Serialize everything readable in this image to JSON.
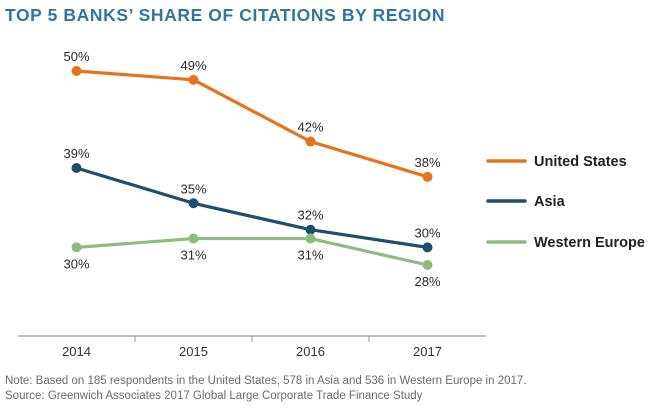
{
  "chart_data": {
    "type": "line",
    "title": "TOP 5 BANKS’ SHARE OF CITATIONS BY REGION",
    "xlabel": "",
    "ylabel": "",
    "categories": [
      "2014",
      "2015",
      "2016",
      "2017"
    ],
    "y_unit": "%",
    "ylim": [
      28,
      50
    ],
    "grid": false,
    "legend_position": "right",
    "series": [
      {
        "name": "United States",
        "color": "#e8731f",
        "values": [
          50,
          49,
          42,
          38
        ],
        "labels": [
          "50%",
          "49%",
          "42%",
          "38%"
        ],
        "label_pos": [
          "above",
          "above",
          "above",
          "above"
        ]
      },
      {
        "name": "Asia",
        "color": "#1f4e6e",
        "values": [
          39,
          35,
          32,
          30
        ],
        "labels": [
          "39%",
          "35%",
          "32%",
          "30%"
        ],
        "label_pos": [
          "above",
          "above",
          "above",
          "above"
        ]
      },
      {
        "name": "Western Europe",
        "color": "#8ebc7e",
        "values": [
          30,
          31,
          31,
          28
        ],
        "labels": [
          "30%",
          "31%",
          "31%",
          "28%"
        ],
        "label_pos": [
          "below",
          "below",
          "below",
          "below"
        ]
      }
    ]
  },
  "footnote": {
    "note": "Note: Based on 185 respondents in the United States, 578 in Asia and 536 in Western Europe in 2017.",
    "source": "Source: Greenwich Associates 2017 Global Large Corporate Trade Finance Study"
  }
}
